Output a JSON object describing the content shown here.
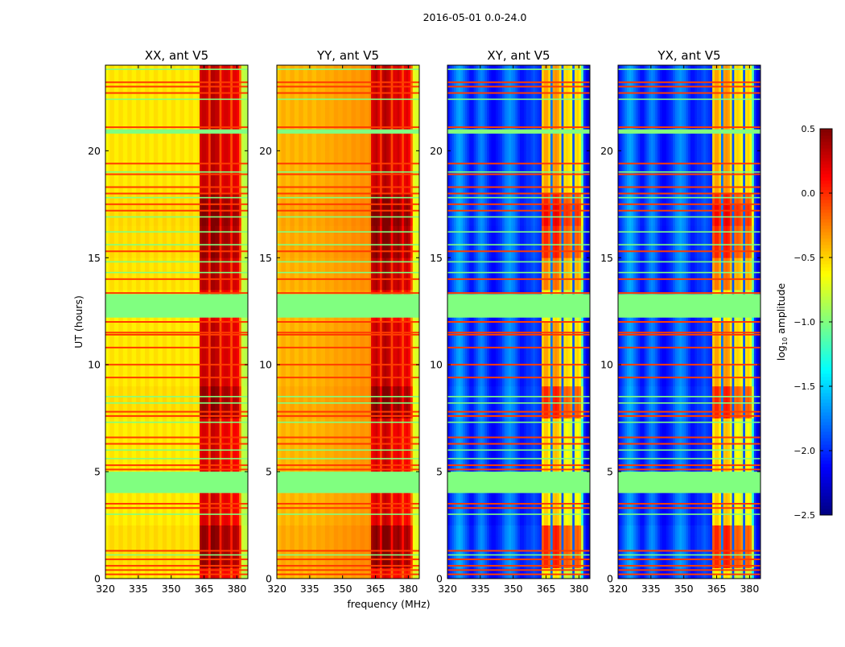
{
  "chart_data": {
    "type": "heatmap",
    "title": "2016-05-01 0.0-24.0",
    "xlabel": "frequency (MHz)",
    "ylabel": "UT (hours)",
    "xlim": [
      320,
      385
    ],
    "ylim": [
      0,
      24
    ],
    "xticks": [
      320,
      335,
      350,
      365,
      380
    ],
    "xtick_labels": [
      "320",
      "335",
      "350",
      "365",
      "380"
    ],
    "yticks": [
      0,
      5,
      10,
      15,
      20
    ],
    "ytick_labels": [
      "0",
      "5",
      "10",
      "15",
      "20"
    ],
    "colormap": "jet",
    "colorbar": {
      "label_main": "log",
      "label_sub": "10",
      "label_rest": " amplitude",
      "range": [
        -2.5,
        0.5
      ],
      "ticks": [
        0.5,
        0.0,
        -0.5,
        -1.0,
        -1.5,
        -2.0,
        -2.5
      ],
      "tick_labels": [
        "0.5",
        "0.0",
        "−0.5",
        "−1.0",
        "−1.5",
        "−2.0",
        "−2.5"
      ]
    },
    "freq_start_mhz": 320,
    "freq_step_mhz": 1,
    "time_step_hours": 0.5,
    "burst_range_mhz": [
      363,
      381
    ],
    "time_profile": [
      0,
      0.25,
      0.25,
      0.25,
      0.25,
      0.05,
      0.05,
      0.05,
      0,
      0,
      0.05,
      0.05,
      0.05,
      0.05,
      0.05,
      0.25,
      0.25,
      0.25,
      0.1,
      0.1,
      0.1,
      0.1,
      0.1,
      0.1,
      0,
      0,
      0,
      0.15,
      0.15,
      0.15,
      0.25,
      0.25,
      0.25,
      0.3,
      0.3,
      0.25,
      0.1,
      0.1,
      0.1,
      0.1,
      0.1,
      0.1,
      0.1,
      0.1,
      0.1,
      0.1,
      0.1,
      0.1
    ],
    "flagged_hours": [
      [
        4.0,
        5.0
      ],
      [
        12.2,
        13.3
      ],
      [
        20.8,
        21.0
      ]
    ],
    "flag_value": -1.0,
    "rfi_high_lines_hours": [
      0.2,
      0.4,
      0.6,
      0.9,
      1.3,
      3.3,
      3.5,
      5.1,
      5.3,
      6.3,
      6.6,
      7.6,
      7.8,
      9.4,
      10.0,
      10.8,
      11.4,
      11.5,
      12.0,
      13.35,
      14.0,
      15.3,
      17.2,
      17.5,
      18.0,
      18.3,
      18.9,
      19.4,
      21.1,
      22.7,
      23.0,
      23.2
    ],
    "rfi_high_value": -0.05,
    "rfi_flag_lines_hours": [
      1.1,
      3.0,
      5.6,
      6.0,
      7.3,
      8.2,
      8.5,
      14.3,
      14.8,
      15.6,
      16.2,
      16.9,
      17.8,
      19.0,
      22.4,
      23.8
    ],
    "panels": [
      {
        "title": "XX, ant V5",
        "burst_gain": 1.0,
        "freq_profile": [
          -0.65,
          -0.6,
          -0.55,
          -0.55,
          -0.6,
          -0.6,
          -0.55,
          -0.55,
          -0.6,
          -0.6,
          -0.55,
          -0.55,
          -0.6,
          -0.6,
          -0.55,
          -0.55,
          -0.6,
          -0.6,
          -0.55,
          -0.55,
          -0.6,
          -0.6,
          -0.55,
          -0.55,
          -0.6,
          -0.6,
          -0.55,
          -0.55,
          -0.6,
          -0.6,
          -0.55,
          -0.55,
          -0.6,
          -0.6,
          -0.55,
          -0.55,
          -0.6,
          -0.6,
          -0.55,
          -0.55,
          -0.6,
          -0.6,
          -0.55,
          0.15,
          0.2,
          0.2,
          0.15,
          -0.15,
          0.25,
          0.25,
          0.2,
          0.2,
          -0.2,
          0.1,
          0.15,
          0.15,
          0.1,
          -0.2,
          0.1,
          0.1,
          0.05,
          -0.3,
          -0.8,
          -0.85,
          -0.85
        ]
      },
      {
        "title": "YY, ant V5",
        "burst_gain": 1.2,
        "freq_profile": [
          -0.5,
          -0.45,
          -0.4,
          -0.4,
          -0.45,
          -0.45,
          -0.4,
          -0.4,
          -0.45,
          -0.45,
          -0.4,
          -0.4,
          -0.45,
          -0.45,
          -0.4,
          -0.4,
          -0.45,
          -0.45,
          -0.4,
          -0.4,
          -0.42,
          -0.42,
          -0.38,
          -0.38,
          -0.4,
          -0.4,
          -0.36,
          -0.36,
          -0.38,
          -0.38,
          -0.35,
          -0.35,
          -0.37,
          -0.37,
          -0.33,
          -0.33,
          -0.35,
          -0.35,
          -0.32,
          -0.32,
          -0.34,
          -0.34,
          -0.3,
          0.1,
          0.15,
          0.2,
          0.1,
          -0.15,
          0.2,
          0.25,
          0.2,
          0.15,
          -0.2,
          0.1,
          0.1,
          0.15,
          0.05,
          -0.2,
          0.05,
          0.1,
          0.0,
          -0.3,
          -0.7,
          -0.75,
          -0.75
        ]
      },
      {
        "title": "XY, ant V5",
        "burst_gain": 2.5,
        "freq_profile": [
          -2.1,
          -2.0,
          -1.9,
          -1.8,
          -1.7,
          -1.65,
          -1.7,
          -1.8,
          -1.9,
          -2.0,
          -2.1,
          -2.1,
          -2.0,
          -1.9,
          -1.8,
          -1.75,
          -1.8,
          -1.9,
          -2.0,
          -2.1,
          -2.15,
          -2.15,
          -2.1,
          -2.05,
          -2.0,
          -1.9,
          -1.8,
          -1.75,
          -1.7,
          -1.75,
          -1.8,
          -1.9,
          -2.0,
          -2.1,
          -2.1,
          -2.05,
          -2.0,
          -2.0,
          -1.95,
          -1.9,
          -1.95,
          -2.0,
          -2.05,
          -0.75,
          -0.6,
          -0.6,
          -0.75,
          -1.8,
          -0.6,
          -0.55,
          -0.6,
          -0.8,
          -1.9,
          -0.8,
          -0.75,
          -0.8,
          -0.9,
          -1.9,
          -0.8,
          -0.75,
          -0.85,
          -1.4,
          -2.0,
          -2.2,
          -2.3
        ]
      },
      {
        "title": "YX, ant V5",
        "burst_gain": 2.5,
        "freq_profile": [
          -2.1,
          -2.0,
          -1.9,
          -1.8,
          -1.7,
          -1.65,
          -1.7,
          -1.8,
          -1.9,
          -2.0,
          -2.1,
          -2.1,
          -2.0,
          -1.9,
          -1.8,
          -1.75,
          -1.8,
          -1.9,
          -2.0,
          -2.1,
          -2.15,
          -2.15,
          -2.1,
          -2.05,
          -2.0,
          -1.9,
          -1.8,
          -1.75,
          -1.7,
          -1.75,
          -1.8,
          -1.9,
          -2.0,
          -2.1,
          -2.1,
          -2.05,
          -2.0,
          -2.0,
          -1.95,
          -1.9,
          -1.95,
          -2.0,
          -2.05,
          -0.75,
          -0.6,
          -0.6,
          -0.75,
          -1.8,
          -0.6,
          -0.55,
          -0.6,
          -0.8,
          -1.9,
          -0.8,
          -0.75,
          -0.8,
          -0.9,
          -1.9,
          -0.8,
          -0.75,
          -0.85,
          -1.4,
          -2.0,
          -2.2,
          -2.3
        ]
      }
    ]
  }
}
